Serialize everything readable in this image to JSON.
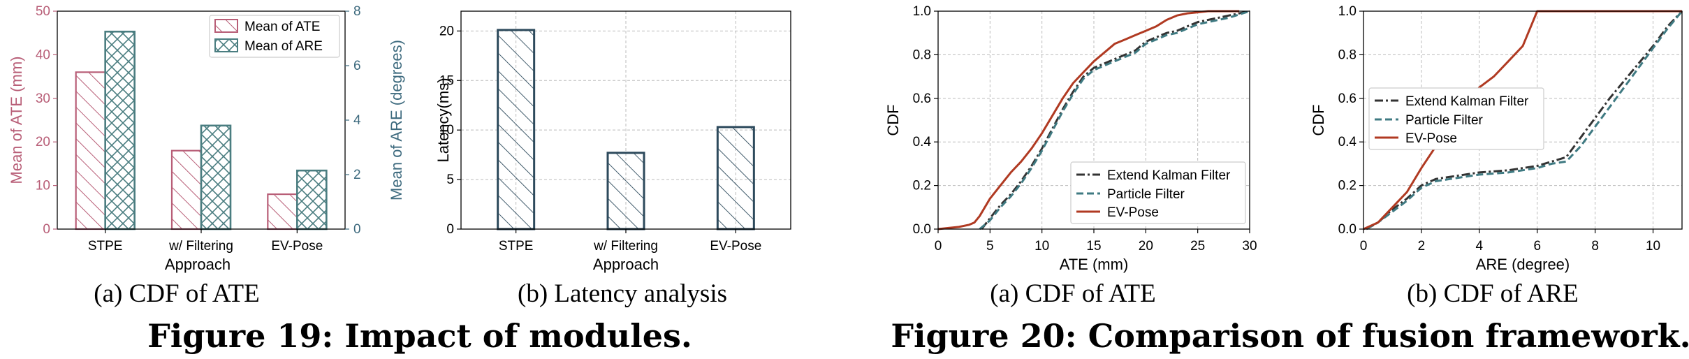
{
  "colors": {
    "ate": "#b85e77",
    "are": "#4a7d80",
    "latency": "#2d4a5c",
    "ekf": "#333333",
    "pf": "#3f7a82",
    "evpose": "#b03a22",
    "ate_axis": "#b85e77",
    "are_axis": "#3d6a7e"
  },
  "captions": {
    "a1": "(a)  CDF of ATE",
    "b1": "(b)  Latency analysis",
    "a2": "(a)  CDF of ATE",
    "b2": "(b)  CDF of ARE"
  },
  "figure_titles": {
    "fig19": "Figure 19: Impact of modules.",
    "fig20": "Figure 20: Comparison of fusion framework."
  },
  "chart_data": [
    {
      "id": "impact-ate-are",
      "type": "bar",
      "categories": [
        "STPE",
        "w/ Filtering",
        "EV-Pose"
      ],
      "series": [
        {
          "name": "Mean of ATE",
          "axis": "left",
          "values": [
            36,
            18,
            8
          ]
        },
        {
          "name": "Mean of ARE",
          "axis": "right",
          "values": [
            7.25,
            3.8,
            2.15
          ]
        }
      ],
      "xlabel": "Approach",
      "ylabel": "Mean of ATE (mm)",
      "ylabel_right": "Mean of ARE (degrees)",
      "ylim": [
        0,
        50
      ],
      "ylim_right": [
        0,
        8
      ],
      "yticks": [
        0,
        10,
        20,
        30,
        40,
        50
      ],
      "yticks_right": [
        0,
        2,
        4,
        6,
        8
      ],
      "grid": false,
      "legend": "top-right"
    },
    {
      "id": "latency",
      "type": "bar",
      "categories": [
        "STPE",
        "w/ Filtering",
        "EV-Pose"
      ],
      "values": [
        20.1,
        7.7,
        10.3
      ],
      "xlabel": "Approach",
      "ylabel": "Latency(ms)",
      "ylim": [
        0,
        22
      ],
      "yticks": [
        0,
        5,
        10,
        15,
        20
      ],
      "grid": true
    },
    {
      "id": "cdf-ate",
      "type": "line",
      "xlabel": "ATE (mm)",
      "ylabel": "CDF",
      "xlim": [
        0,
        30
      ],
      "ylim": [
        0,
        1
      ],
      "xticks": [
        0,
        5,
        10,
        15,
        20,
        25,
        30
      ],
      "yticks": [
        0.0,
        0.2,
        0.4,
        0.6,
        0.8,
        1.0
      ],
      "grid": true,
      "legend": "bottom-right",
      "series": [
        {
          "name": "Extend Kalman Filter",
          "x": [
            4.2,
            5,
            6,
            7,
            8,
            9,
            10,
            11,
            12,
            13,
            14,
            15,
            16,
            17,
            18,
            19,
            20,
            21,
            22,
            23,
            24,
            25,
            26,
            27,
            28,
            29,
            30
          ],
          "y": [
            0,
            0.05,
            0.11,
            0.16,
            0.22,
            0.29,
            0.37,
            0.46,
            0.55,
            0.63,
            0.7,
            0.74,
            0.76,
            0.78,
            0.8,
            0.82,
            0.86,
            0.88,
            0.9,
            0.91,
            0.93,
            0.95,
            0.96,
            0.97,
            0.98,
            0.99,
            1.0
          ]
        },
        {
          "name": "Particle Filter",
          "x": [
            4.0,
            5,
            6,
            7,
            8,
            9,
            10,
            11,
            12,
            13,
            14,
            15,
            16,
            17,
            18,
            19,
            20,
            21,
            22,
            23,
            24,
            25,
            26,
            27,
            28,
            29,
            30
          ],
          "y": [
            0,
            0.04,
            0.1,
            0.15,
            0.21,
            0.28,
            0.36,
            0.45,
            0.54,
            0.62,
            0.69,
            0.73,
            0.75,
            0.77,
            0.79,
            0.81,
            0.85,
            0.87,
            0.89,
            0.9,
            0.92,
            0.94,
            0.95,
            0.96,
            0.97,
            0.985,
            1.0
          ]
        },
        {
          "name": "EV-Pose",
          "x": [
            0,
            1,
            2,
            3,
            3.5,
            4,
            5,
            6,
            7,
            8,
            9,
            10,
            11,
            12,
            13,
            14,
            15,
            16,
            17,
            18,
            19,
            20,
            21,
            22,
            23,
            24,
            25,
            26,
            27,
            28,
            29
          ],
          "y": [
            0,
            0.005,
            0.01,
            0.02,
            0.03,
            0.06,
            0.14,
            0.2,
            0.26,
            0.31,
            0.37,
            0.44,
            0.52,
            0.6,
            0.67,
            0.72,
            0.77,
            0.81,
            0.85,
            0.87,
            0.89,
            0.91,
            0.93,
            0.96,
            0.98,
            0.99,
            0.995,
            1.0,
            1.0,
            1.0,
            1.0
          ]
        }
      ]
    },
    {
      "id": "cdf-are",
      "type": "line",
      "xlabel": "ARE (degree)",
      "ylabel": "CDF",
      "xlim": [
        0,
        11
      ],
      "ylim": [
        0,
        1
      ],
      "xticks": [
        0,
        2,
        4,
        6,
        8,
        10
      ],
      "yticks": [
        0.0,
        0.2,
        0.4,
        0.6,
        0.8,
        1.0
      ],
      "grid": true,
      "legend": "top-left",
      "series": [
        {
          "name": "Extend Kalman Filter",
          "x": [
            0.1,
            0.5,
            1,
            1.5,
            2,
            2.5,
            3,
            4,
            5,
            6,
            6.5,
            7,
            7.5,
            8,
            8.5,
            9,
            9.5,
            10,
            10.5,
            11
          ],
          "y": [
            0,
            0.03,
            0.09,
            0.14,
            0.2,
            0.23,
            0.24,
            0.26,
            0.27,
            0.29,
            0.31,
            0.33,
            0.42,
            0.51,
            0.6,
            0.68,
            0.76,
            0.84,
            0.93,
            1.0
          ]
        },
        {
          "name": "Particle Filter",
          "x": [
            0.1,
            0.5,
            1,
            1.5,
            2,
            2.5,
            3,
            4,
            5,
            6,
            6.5,
            7,
            7.5,
            8,
            8.5,
            9,
            9.5,
            10,
            10.5,
            11
          ],
          "y": [
            0,
            0.03,
            0.08,
            0.13,
            0.19,
            0.22,
            0.23,
            0.25,
            0.26,
            0.28,
            0.3,
            0.31,
            0.38,
            0.47,
            0.56,
            0.65,
            0.74,
            0.83,
            0.92,
            1.0
          ]
        },
        {
          "name": "EV-Pose",
          "x": [
            0,
            0.5,
            1,
            1.5,
            2,
            2.5,
            3,
            3.5,
            4,
            4.5,
            5,
            5.5,
            6,
            7,
            8,
            9,
            10,
            11
          ],
          "y": [
            0,
            0.03,
            0.1,
            0.17,
            0.28,
            0.38,
            0.48,
            0.56,
            0.65,
            0.7,
            0.77,
            0.84,
            1.0,
            1.0,
            1.0,
            1.0,
            1.0,
            1.0
          ]
        }
      ]
    }
  ]
}
